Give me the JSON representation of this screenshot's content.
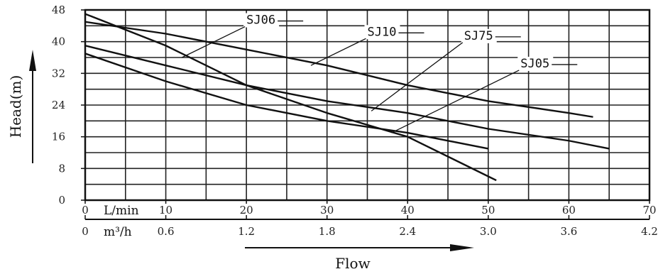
{
  "chart_data": {
    "type": "line",
    "ylabel": "Head(m)",
    "xlabel": "Flow",
    "x_unit_primary": "L/min",
    "x_unit_secondary": "m³/h",
    "xlim": [
      0,
      70
    ],
    "ylim": [
      0,
      48
    ],
    "grid": true,
    "y_ticks": [
      0,
      8,
      16,
      24,
      32,
      40,
      48
    ],
    "x_ticks_primary": [
      0,
      10,
      20,
      30,
      40,
      50,
      60,
      70
    ],
    "x_tick_labels_primary": [
      "0",
      "10",
      "20",
      "30",
      "40",
      "50",
      "60",
      "70"
    ],
    "x_ticks_secondary": [
      0,
      10,
      20,
      30,
      40,
      50,
      60,
      70
    ],
    "x_tick_labels_secondary": [
      "0",
      "0.6",
      "1.2",
      "1.8",
      "2.4",
      "3.0",
      "3.6",
      "4.2"
    ],
    "series": [
      {
        "name": "SJ06",
        "x": [
          0,
          10,
          20,
          30,
          40,
          50,
          51
        ],
        "y": [
          47,
          39,
          29,
          22,
          16,
          6,
          5
        ]
      },
      {
        "name": "SJ10",
        "x": [
          0,
          10,
          20,
          30,
          40,
          50,
          60,
          63
        ],
        "y": [
          45,
          42,
          38,
          34,
          29,
          25,
          22,
          21
        ]
      },
      {
        "name": "SJ75",
        "x": [
          0,
          10,
          20,
          30,
          40,
          50,
          60,
          65
        ],
        "y": [
          39,
          34,
          29,
          25,
          22,
          18,
          15,
          13
        ]
      },
      {
        "name": "SJ05",
        "x": [
          0,
          10,
          20,
          30,
          40,
          50
        ],
        "y": [
          37,
          30,
          24,
          20,
          17,
          13
        ]
      }
    ],
    "series_labels": [
      {
        "text": "SJ06",
        "at": [
          20,
          44.5
        ],
        "points_to": [
          12,
          36
        ]
      },
      {
        "text": "SJ10",
        "at": [
          35,
          41.5
        ],
        "points_to": [
          28,
          34
        ]
      },
      {
        "text": "SJ75",
        "at": [
          47,
          40.5
        ],
        "points_to": [
          35.5,
          22.5
        ]
      },
      {
        "text": "SJ05",
        "at": [
          54,
          33.5
        ],
        "points_to": [
          38,
          17
        ]
      }
    ]
  }
}
